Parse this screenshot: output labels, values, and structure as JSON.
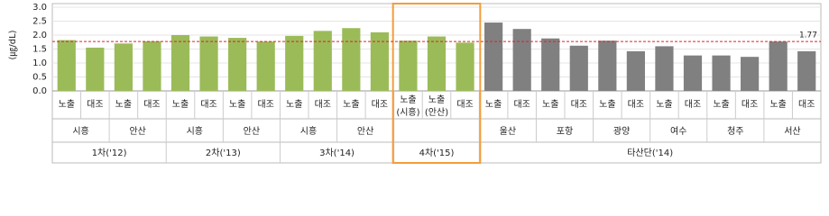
{
  "chart_data": {
    "type": "bar",
    "y_label": "(㎍/dL)",
    "ylim": [
      0,
      3
    ],
    "yticks": [
      {
        "value": 0,
        "label": "0.0"
      },
      {
        "value": 0.5,
        "label": "0.5"
      },
      {
        "value": 1,
        "label": "1.0"
      },
      {
        "value": 1.5,
        "label": "1.5"
      },
      {
        "value": 2,
        "label": "2.0"
      },
      {
        "value": 2.5,
        "label": "2.5"
      },
      {
        "value": 3,
        "label": "3.0"
      }
    ],
    "grid": true,
    "reference_line": 1.77,
    "reference_color": "#e02020",
    "groups": [
      {
        "name": "1차('12)",
        "color": "#9bbb59",
        "regions": [
          {
            "name": "시흥",
            "categories": [
              "노출",
              "대조"
            ],
            "values": [
              1.82,
              1.55
            ]
          },
          {
            "name": "안산",
            "categories": [
              "노출",
              "대조"
            ],
            "values": [
              1.7,
              1.78
            ]
          }
        ]
      },
      {
        "name": "2차('13)",
        "color": "#9bbb59",
        "regions": [
          {
            "name": "시흥",
            "categories": [
              "노출",
              "대조"
            ],
            "values": [
              2.0,
              1.95
            ]
          },
          {
            "name": "안산",
            "categories": [
              "노출",
              "대조"
            ],
            "values": [
              1.9,
              1.77
            ]
          }
        ]
      },
      {
        "name": "3차('14)",
        "color": "#9bbb59",
        "regions": [
          {
            "name": "시흥",
            "categories": [
              "노출",
              "대조"
            ],
            "values": [
              1.97,
              2.15
            ]
          },
          {
            "name": "안산",
            "categories": [
              "노출",
              "대조"
            ],
            "values": [
              2.25,
              2.1
            ]
          }
        ]
      },
      {
        "name": "4차('15)",
        "color": "#9bbb59",
        "highlight": true,
        "regions": [
          {
            "name": null,
            "categories": [
              "노출(시흥)",
              "노출(안산)",
              "대조"
            ],
            "values": [
              1.8,
              1.95,
              1.73
            ]
          }
        ]
      },
      {
        "name": "타산단('14)",
        "color": "#808080",
        "regions": [
          {
            "name": "울산",
            "categories": [
              "노출",
              "대조"
            ],
            "values": [
              2.45,
              2.22
            ]
          },
          {
            "name": "포항",
            "categories": [
              "노출",
              "대조"
            ],
            "values": [
              1.88,
              1.62
            ]
          },
          {
            "name": "광양",
            "categories": [
              "노출",
              "대조"
            ],
            "values": [
              1.8,
              1.42
            ]
          },
          {
            "name": "여수",
            "categories": [
              "노출",
              "대조"
            ],
            "values": [
              1.6,
              1.27
            ]
          },
          {
            "name": "청주",
            "categories": [
              "노출",
              "대조"
            ],
            "values": [
              1.27,
              1.22
            ]
          },
          {
            "name": "서산",
            "categories": [
              "노출",
              "대조"
            ],
            "values": [
              1.77,
              1.42
            ]
          }
        ]
      }
    ]
  }
}
